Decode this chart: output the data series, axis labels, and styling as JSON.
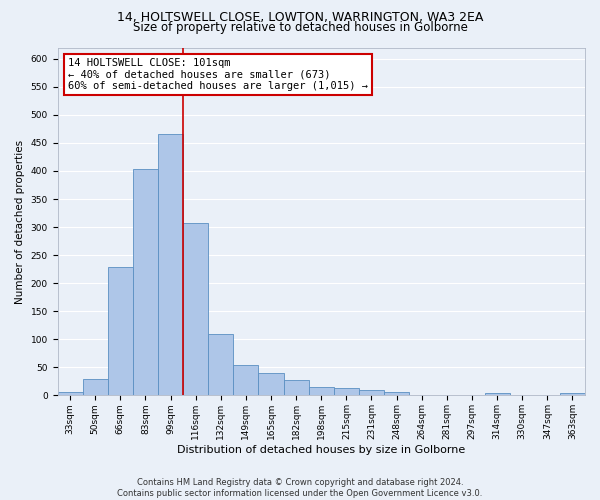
{
  "title1": "14, HOLTSWELL CLOSE, LOWTON, WARRINGTON, WA3 2EA",
  "title2": "Size of property relative to detached houses in Golborne",
  "xlabel": "Distribution of detached houses by size in Golborne",
  "ylabel": "Number of detached properties",
  "categories": [
    "33sqm",
    "50sqm",
    "66sqm",
    "83sqm",
    "99sqm",
    "116sqm",
    "132sqm",
    "149sqm",
    "165sqm",
    "182sqm",
    "198sqm",
    "215sqm",
    "231sqm",
    "248sqm",
    "264sqm",
    "281sqm",
    "297sqm",
    "314sqm",
    "330sqm",
    "347sqm",
    "363sqm"
  ],
  "values": [
    7,
    30,
    228,
    403,
    465,
    307,
    110,
    54,
    40,
    27,
    15,
    13,
    10,
    7,
    0,
    0,
    0,
    5,
    0,
    0,
    5
  ],
  "bar_color": "#aec6e8",
  "bar_edge_color": "#5a8fc2",
  "vline_x": 4.5,
  "vline_color": "#cc0000",
  "annotation_line1": "14 HOLTSWELL CLOSE: 101sqm",
  "annotation_line2": "← 40% of detached houses are smaller (673)",
  "annotation_line3": "60% of semi-detached houses are larger (1,015) →",
  "annotation_box_color": "#ffffff",
  "annotation_box_edge": "#cc0000",
  "footer1": "Contains HM Land Registry data © Crown copyright and database right 2024.",
  "footer2": "Contains public sector information licensed under the Open Government Licence v3.0.",
  "ylim": [
    0,
    620
  ],
  "yticks": [
    0,
    50,
    100,
    150,
    200,
    250,
    300,
    350,
    400,
    450,
    500,
    550,
    600
  ],
  "background_color": "#eaf0f8",
  "plot_background": "#eaf0f8",
  "grid_color": "#ffffff",
  "title1_fontsize": 9,
  "title2_fontsize": 8.5,
  "ylabel_fontsize": 7.5,
  "xlabel_fontsize": 8,
  "tick_fontsize": 6.5,
  "annotation_fontsize": 7.5,
  "footer_fontsize": 6
}
